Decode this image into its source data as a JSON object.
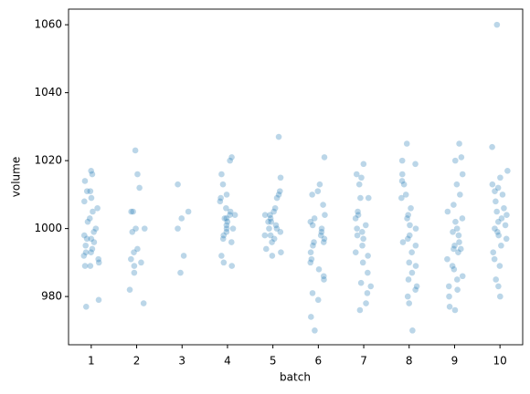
{
  "chart_data": {
    "type": "strip",
    "xlabel": "batch",
    "ylabel": "volume",
    "categories": [
      "1",
      "2",
      "3",
      "4",
      "5",
      "6",
      "7",
      "8",
      "9",
      "10"
    ],
    "values": [
      [
        1017,
        1016,
        1014,
        1011,
        1011,
        1009,
        1008,
        1006,
        1005,
        1003,
        1002,
        1000,
        999,
        998,
        997,
        997,
        996,
        995,
        994,
        993,
        993,
        992,
        991,
        990,
        989,
        989,
        979,
        977
      ],
      [
        1023,
        1016,
        1012,
        1005,
        1005,
        1000,
        1000,
        999,
        994,
        993,
        991,
        990,
        989,
        987,
        982,
        978
      ],
      [
        1013,
        1005,
        1003,
        1000,
        992,
        987
      ],
      [
        1021,
        1020,
        1016,
        1013,
        1010,
        1009,
        1008,
        1006,
        1005,
        1004,
        1004,
        1003,
        1003,
        1002,
        1001,
        1000,
        1000,
        999,
        998,
        997,
        996,
        992,
        990,
        989
      ],
      [
        1027,
        1015,
        1011,
        1010,
        1009,
        1006,
        1005,
        1004,
        1004,
        1003,
        1002,
        1002,
        1001,
        1000,
        1000,
        999,
        998,
        998,
        997,
        996,
        994,
        993,
        992
      ],
      [
        1021,
        1013,
        1011,
        1010,
        1007,
        1004,
        1003,
        1002,
        1001,
        1000,
        999,
        998,
        997,
        996,
        996,
        995,
        993,
        991,
        990,
        988,
        986,
        985,
        981,
        979,
        974,
        970
      ],
      [
        1019,
        1016,
        1015,
        1013,
        1009,
        1009,
        1005,
        1004,
        1003,
        1001,
        1000,
        999,
        998,
        997,
        995,
        993,
        992,
        990,
        987,
        984,
        983,
        981,
        978,
        976
      ],
      [
        1025,
        1020,
        1019,
        1016,
        1014,
        1013,
        1010,
        1009,
        1006,
        1004,
        1003,
        1001,
        1000,
        998,
        997,
        996,
        995,
        993,
        990,
        989,
        987,
        985,
        983,
        982,
        980,
        978,
        970
      ],
      [
        1025,
        1021,
        1020,
        1016,
        1013,
        1010,
        1007,
        1005,
        1003,
        1002,
        1000,
        999,
        998,
        996,
        995,
        994,
        994,
        993,
        991,
        989,
        988,
        986,
        985,
        983,
        982,
        980,
        977,
        976
      ],
      [
        1060,
        1024,
        1017,
        1015,
        1013,
        1012,
        1011,
        1010,
        1008,
        1006,
        1005,
        1004,
        1003,
        1002,
        1001,
        1000,
        999,
        998,
        997,
        995,
        993,
        991,
        989,
        985,
        983,
        980
      ]
    ],
    "color": "#1f77b4",
    "ylim": [
      965.8,
      1064.6
    ],
    "yticks": [
      980,
      1000,
      1020,
      1040,
      1060
    ]
  }
}
